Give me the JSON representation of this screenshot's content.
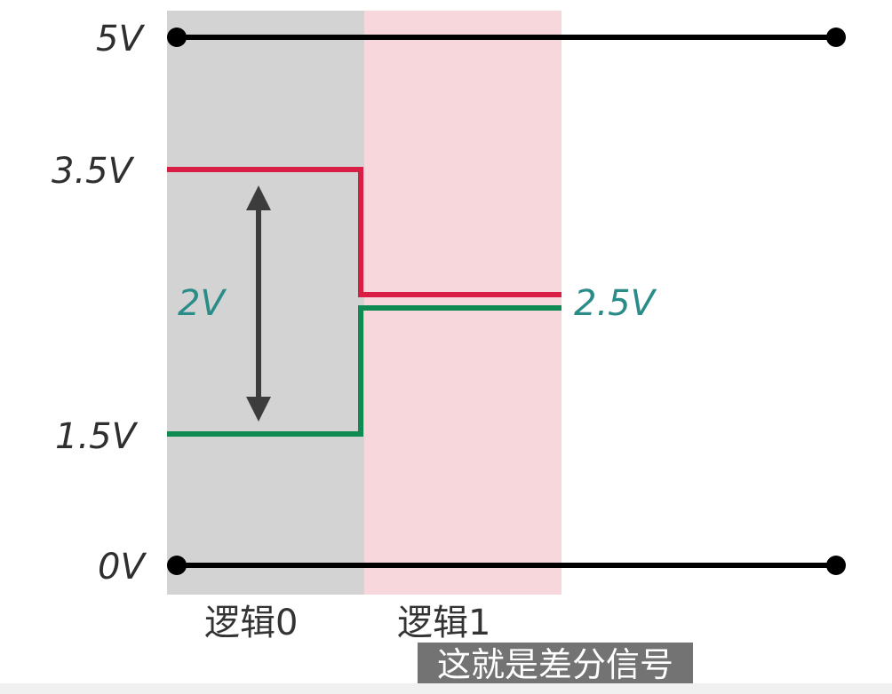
{
  "labels": {
    "v5": "5V",
    "v35": "3.5V",
    "v15": "1.5V",
    "v0": "0V",
    "diff": "2V",
    "v25": "2.5V"
  },
  "regions": {
    "logic0": "逻辑0",
    "logic1": "逻辑1"
  },
  "subtitle": "这就是差分信号",
  "colors": {
    "logic0_region": "#d3d3d3",
    "logic1_region": "#f7d6dc",
    "positive_signal": "#d81e45",
    "negative_signal": "#0e8a52",
    "rail": "#000000",
    "arrow": "#3c3c3c",
    "teal_text": "#2a8c89"
  }
}
